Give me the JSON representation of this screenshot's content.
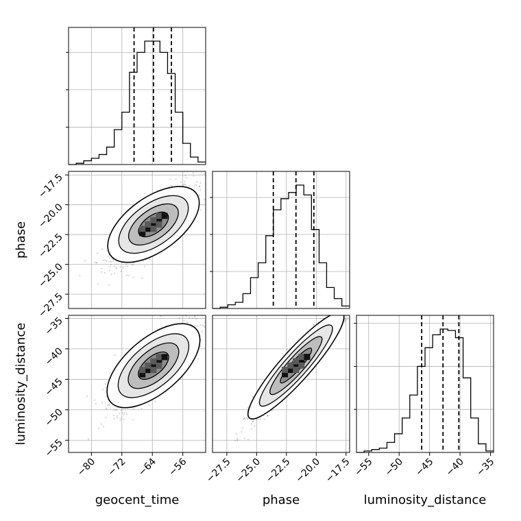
{
  "chart_data": {
    "type": "corner",
    "parameters": [
      "geocent_time",
      "phase",
      "luminosity_distance"
    ],
    "grid": true,
    "axes": {
      "geocent_time": {
        "range": [
          -86,
          -50
        ],
        "ticks": [
          -80,
          -72,
          -64,
          -56
        ],
        "tick_labels": [
          "−80",
          "−72",
          "−64",
          "−56"
        ]
      },
      "phase": {
        "range": [
          -28.7,
          -17.2
        ],
        "ticks": [
          -27.5,
          -25.0,
          -22.5,
          -20.0,
          -17.5
        ],
        "tick_labels": [
          "−27.5",
          "−25.0",
          "−22.5",
          "−20.0",
          "−17.5"
        ]
      },
      "luminosity_distance": {
        "range": [
          -57,
          -34.5
        ],
        "ticks": [
          -55,
          -50,
          -45,
          -40,
          -35
        ],
        "tick_labels": [
          "−55",
          "−50",
          "−45",
          "−40",
          "−35"
        ]
      }
    },
    "quantiles": {
      "geocent_time": [
        -68.8,
        -63.7,
        -59.0
      ],
      "phase": [
        -23.6,
        -21.7,
        -20.2
      ],
      "luminosity_distance": [
        -46.3,
        -42.8,
        -40.2
      ]
    },
    "histograms": {
      "geocent_time": {
        "edges": [
          -86,
          -84,
          -82,
          -80,
          -78,
          -76,
          -74,
          -72,
          -70,
          -68,
          -66,
          -64,
          -62,
          -60,
          -58,
          -56,
          -54,
          -52,
          -50
        ],
        "counts": [
          0,
          1,
          3,
          5,
          8,
          14,
          28,
          42,
          74,
          90,
          99,
          99,
          90,
          73,
          42,
          17,
          6,
          2
        ]
      },
      "phase": {
        "edges": [
          -28.7,
          -28.06,
          -27.42,
          -26.79,
          -26.15,
          -25.51,
          -24.87,
          -24.23,
          -23.59,
          -22.96,
          -22.32,
          -21.68,
          -21.04,
          -20.4,
          -19.76,
          -19.13,
          -18.49,
          -17.85,
          -17.2
        ],
        "counts": [
          0,
          1,
          3,
          5,
          12,
          25,
          37,
          59,
          80,
          89,
          94,
          100,
          92,
          64,
          37,
          17,
          8,
          2
        ]
      },
      "luminosity_distance": {
        "edges": [
          -57,
          -55.75,
          -54.5,
          -53.25,
          -52,
          -50.75,
          -49.5,
          -48.25,
          -47,
          -45.75,
          -44.5,
          -43.25,
          -42,
          -40.75,
          -39.5,
          -38.25,
          -37,
          -35.75,
          -34.5
        ],
        "counts": [
          0,
          1,
          2,
          3,
          7,
          13,
          24,
          40,
          60,
          73,
          82,
          86,
          85,
          80,
          52,
          24,
          6,
          1
        ]
      }
    },
    "correlations": {
      "phase|geocent_time": {
        "slope": 0.23,
        "intercept": -7.0,
        "spread": 0.9
      },
      "luminosity_distance|geocent_time": {
        "slope": 0.53,
        "intercept": -9.0,
        "spread": 1.9
      },
      "luminosity_distance|phase": {
        "slope": 2.2,
        "intercept": 5.0,
        "spread": 1.2
      }
    },
    "colors": {
      "hist": "#000000",
      "quantile": "#000000",
      "scatter": "#7f7f7f",
      "grid": "#b0b0b0"
    }
  }
}
